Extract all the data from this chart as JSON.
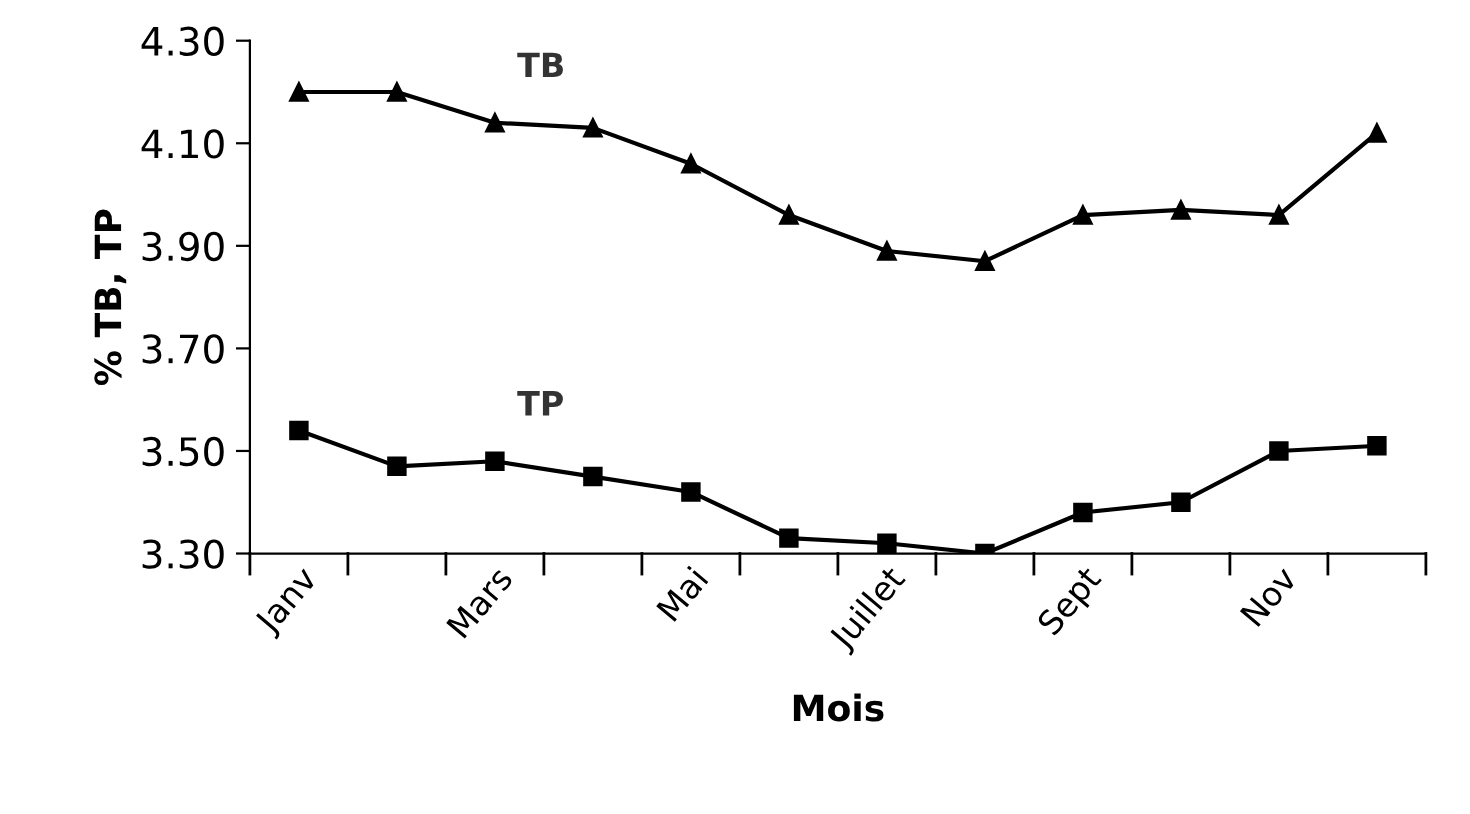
{
  "chart_data": {
    "type": "line",
    "xlabel": "Mois",
    "ylabel": "% TB, TP",
    "categories": [
      "Janv",
      null,
      "Mars",
      null,
      "Mai",
      null,
      "Juillet",
      null,
      "Sept",
      null,
      "Nov",
      null
    ],
    "series": [
      {
        "name": "TB",
        "color": "#000000",
        "marker": "triangle",
        "values": [
          4.2,
          4.2,
          4.14,
          4.13,
          4.06,
          3.96,
          3.89,
          3.87,
          3.96,
          3.97,
          3.96,
          4.12
        ]
      },
      {
        "name": "TP",
        "color": "#000000",
        "marker": "square",
        "values": [
          3.54,
          3.47,
          3.48,
          3.45,
          3.42,
          3.33,
          3.32,
          3.3,
          3.38,
          3.4,
          3.5,
          3.51
        ]
      }
    ],
    "ylim": [
      3.3,
      4.3
    ],
    "yticks": [
      {
        "value": 3.3,
        "label": "3.30"
      },
      {
        "value": 3.5,
        "label": "3.50"
      },
      {
        "value": 3.7,
        "label": "3.70"
      },
      {
        "value": 3.9,
        "label": "3.90"
      },
      {
        "value": 4.1,
        "label": "4.10"
      },
      {
        "value": 4.3,
        "label": "4.30"
      }
    ],
    "grid": false,
    "legend": false,
    "line_style": "solid"
  }
}
